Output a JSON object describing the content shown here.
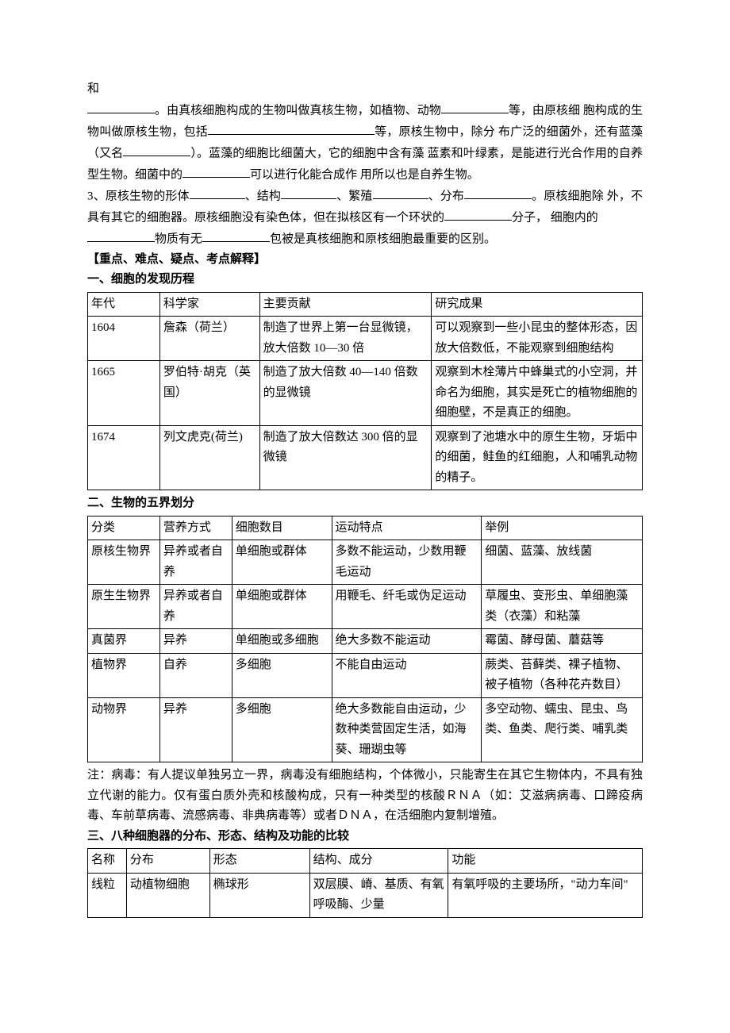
{
  "intro": {
    "line1a": "和",
    "line2a": "。由真核细胞构成的生物叫做真核生物，如植物、动物",
    "line2b": "等，由原核细",
    "line3a": "胞构成的生物叫做原核生物，包括",
    "line3b": "等，原核生物中，除分",
    "line4a": "布广泛的细菌外，还有蓝藻（又名",
    "line4b": "）。蓝藻的细胞比细菌大，它的细胞中含有藻",
    "line5a": "蓝素和叶绿素，是能进行光合作用的自养型生物。细菌中的",
    "line5b": "可以进行化能合成作",
    "line6": "用所以也是自养生物。",
    "para3a": "3、原核生物的形体",
    "para3b": "、结构",
    "para3c": "、繁殖",
    "para3d": "、分布",
    "para3e": "。原核细胞除",
    "para3f": "外，不具有其它的细胞器。原核细胞没有染色体，但在拟核区有一个环状的",
    "para3g": "分子，",
    "para3h": "细胞内的",
    "para4a": "物质有无",
    "para4b": "包被是真核细胞和原核细胞最重要的区别。"
  },
  "sectionHeading": "【重点、难点、疑点、考点解释】",
  "table1": {
    "heading": "一、细胞的发现历程",
    "columns": [
      "年代",
      "科学家",
      "主要贡献",
      "研究成果"
    ],
    "widths": [
      "13%",
      "18%",
      "31%",
      "38%"
    ],
    "rows": [
      [
        "1604",
        "詹森（荷兰）",
        "制造了世界上第一台显微镜，放大倍数 10—30 倍",
        "可以观察到一些小昆虫的整体形态，因放大倍数低，不能观察到细胞结构"
      ],
      [
        "1665",
        "罗伯特·胡克（英国）",
        "制造了放大倍数 40—140 倍数的显微镜",
        "观察到木栓薄片中蜂巢式的小空洞，并命名为细胞，其实是死亡的植物细胞的细胞壁，不是真正的细胞。"
      ],
      [
        "1674",
        "列文虎克(荷兰)",
        "制造了放大倍数达 300 倍的显微镜",
        "观察到了池塘水中的原生生物，牙垢中的细菌，鲑鱼的红细胞，人和哺乳动物的精子。"
      ]
    ]
  },
  "table2": {
    "heading": "二、生物的五界划分",
    "columns": [
      "分类",
      "营养方式",
      "细胞数目",
      "运动特点",
      "举例"
    ],
    "widths": [
      "13%",
      "13%",
      "18%",
      "27%",
      "29%"
    ],
    "rows": [
      [
        "原核生物界",
        "异养或者自养",
        "单细胞或群体",
        "多数不能运动，少数用鞭毛运动",
        "细菌、蓝藻、放线菌"
      ],
      [
        "原生生物界",
        "异养或者自养",
        "单细胞或群体",
        "用鞭毛、纤毛或伪足运动",
        "草履虫、变形虫、单细胞藻类（衣藻）和粘藻"
      ],
      [
        "真菌界",
        "异养",
        "单细胞或多细胞",
        "绝大多数不能运动",
        "霉菌、酵母菌、蘑菇等"
      ],
      [
        "植物界",
        "自养",
        "多细胞",
        "不能自由运动",
        "蕨类、苔藓类、裸子植物、被子植物（各种花卉数目）"
      ],
      [
        "动物界",
        "异养",
        "多细胞",
        "绝大多数能自由运动，少数种类营固定生活，如海葵、珊瑚虫等",
        "多空动物、蠕虫、昆虫、鸟类、鱼类、爬行类、哺乳类"
      ]
    ]
  },
  "note": "注：病毒：有人提议单独另立一界，病毒没有细胞结构，个体微小，只能寄生在其它生物体内，不具有独立代谢的能力。仅有蛋白质外壳和核酸构成，只有一种类型的核酸ＲＮＡ（如：艾滋病病毒、口蹄疫病毒、车前草病毒、流感病毒、非典病毒等）或者ＤＮＡ，在活细胞内复制增殖。",
  "table3": {
    "heading": "三、八种细胞器的分布、形态、结构及功能的比较",
    "columns": [
      "名称",
      "分布",
      "形态",
      "结构、成分",
      "功能"
    ],
    "widths": [
      "7%",
      "15%",
      "18%",
      "25%",
      "35%"
    ],
    "rows": [
      [
        "线粒",
        "动植物细胞",
        "椭球形",
        "双层膜、嵴、基质、有氧呼吸酶、少量",
        "有氧呼吸的主要场所，\"动力车间\""
      ]
    ]
  },
  "styles": {
    "page_bg": "#ffffff",
    "text_color": "#000000",
    "border_color": "#000000",
    "font_size_pt": 11,
    "font_family": "SimSun"
  }
}
